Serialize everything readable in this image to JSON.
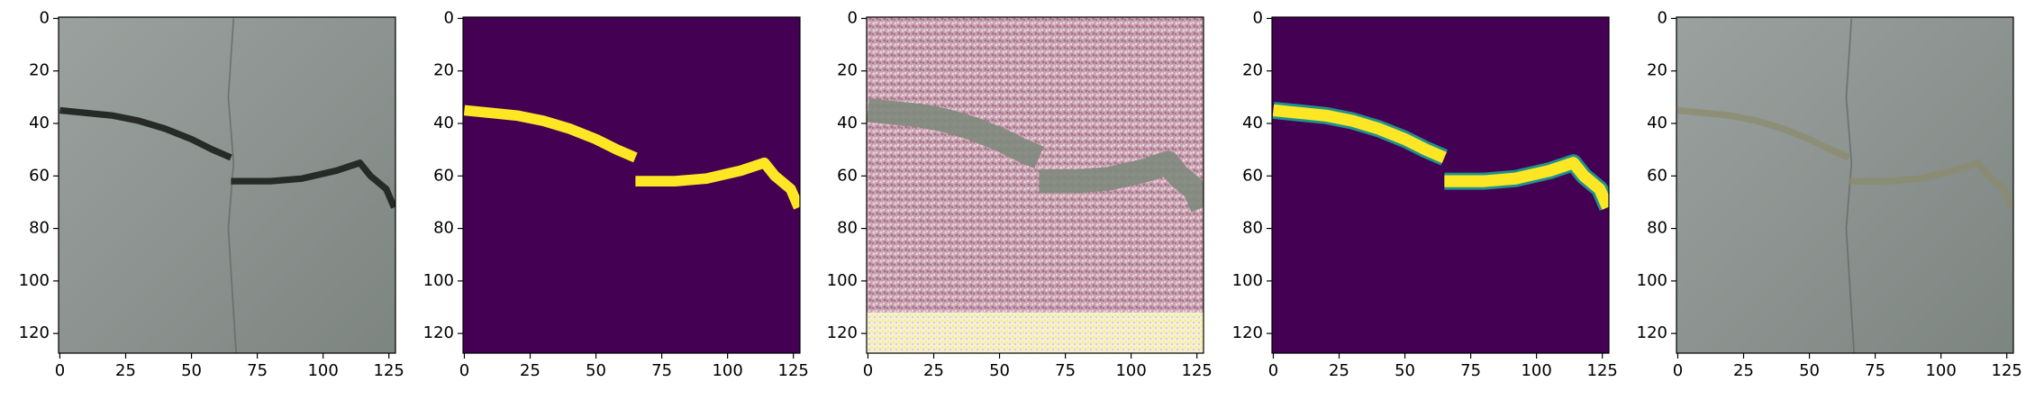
{
  "chart_data": [
    {
      "type": "image",
      "xlim": [
        -0.5,
        127.5
      ],
      "ylim": [
        127.5,
        -0.5
      ],
      "xticks": [
        0,
        25,
        50,
        75,
        100,
        125
      ],
      "yticks": [
        0,
        20,
        40,
        60,
        80,
        100,
        120
      ]
    },
    {
      "type": "image",
      "xlim": [
        -0.5,
        127.5
      ],
      "ylim": [
        127.5,
        -0.5
      ],
      "xticks": [
        0,
        25,
        50,
        75,
        100,
        125
      ],
      "yticks": [
        0,
        20,
        40,
        60,
        80,
        100,
        120
      ]
    },
    {
      "type": "image",
      "xlim": [
        -0.5,
        127.5
      ],
      "ylim": [
        127.5,
        -0.5
      ],
      "xticks": [
        0,
        25,
        50,
        75,
        100,
        125
      ],
      "yticks": [
        0,
        20,
        40,
        60,
        80,
        100,
        120
      ]
    },
    {
      "type": "image",
      "xlim": [
        -0.5,
        127.5
      ],
      "ylim": [
        127.5,
        -0.5
      ],
      "xticks": [
        0,
        25,
        50,
        75,
        100,
        125
      ],
      "yticks": [
        0,
        20,
        40,
        60,
        80,
        100,
        120
      ]
    },
    {
      "type": "image",
      "xlim": [
        -0.5,
        127.5
      ],
      "ylim": [
        127.5,
        -0.5
      ],
      "xticks": [
        0,
        25,
        50,
        75,
        100,
        125
      ],
      "yticks": [
        0,
        20,
        40,
        60,
        80,
        100,
        120
      ]
    }
  ]
}
